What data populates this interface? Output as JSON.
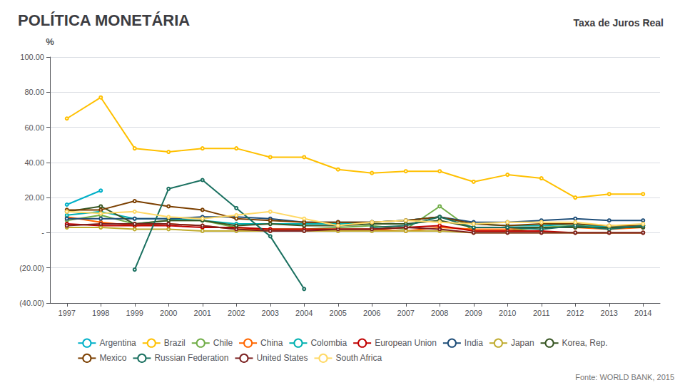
{
  "chart_data": {
    "type": "line",
    "title": "POLÍTICA MONETÁRIA",
    "subtitle": "Taxa de Juros Real",
    "ylabel": "%",
    "annotations": [
      "Fonte: WORLD BANK, 2015"
    ],
    "x": [
      1997,
      1998,
      1999,
      2000,
      2001,
      2002,
      2003,
      2004,
      2005,
      2006,
      2007,
      2008,
      2009,
      2010,
      2011,
      2012,
      2013,
      2014
    ],
    "series": [
      {
        "name": "Argentina",
        "color": "#00B0C8",
        "values": [
          16,
          24,
          null,
          null,
          null,
          null,
          null,
          null,
          null,
          null,
          null,
          null,
          null,
          null,
          null,
          null,
          null,
          null
        ]
      },
      {
        "name": "Brazil",
        "color": "#FFC000",
        "values": [
          65,
          77,
          48,
          46,
          48,
          48,
          43,
          43,
          36,
          34,
          35,
          35,
          29,
          33,
          31,
          20,
          22,
          22
        ]
      },
      {
        "name": "Chile",
        "color": "#70AD47",
        "values": [
          7,
          10,
          5,
          7,
          7,
          3,
          2,
          2,
          3,
          4,
          2,
          15,
          1,
          1,
          3,
          4,
          3,
          4
        ]
      },
      {
        "name": "China",
        "color": "#FF6600",
        "values": [
          9,
          6,
          4,
          5,
          4,
          2,
          2,
          2,
          2,
          2,
          1,
          3,
          2,
          2,
          3,
          3,
          2,
          3
        ]
      },
      {
        "name": "Colombia",
        "color": "#00B0B0",
        "values": [
          10,
          12,
          8,
          8,
          7,
          5,
          5,
          5,
          5,
          6,
          7,
          9,
          5,
          4,
          4,
          5,
          3,
          4
        ]
      },
      {
        "name": "European Union",
        "color": "#C00000",
        "values": [
          5,
          4,
          4,
          4,
          3,
          3,
          2,
          2,
          2,
          2,
          3,
          4,
          1,
          1,
          1,
          0,
          0,
          0
        ]
      },
      {
        "name": "India",
        "color": "#1F4E79",
        "values": [
          8,
          8,
          8,
          8,
          9,
          9,
          8,
          6,
          6,
          6,
          7,
          9,
          6,
          6,
          7,
          8,
          7,
          7
        ]
      },
      {
        "name": "Japan",
        "color": "#BFAB2E",
        "values": [
          3,
          3,
          2,
          2,
          1,
          1,
          1,
          1,
          1,
          1,
          1,
          1,
          0,
          0,
          0,
          0,
          0,
          0
        ]
      },
      {
        "name": "Korea, Rep.",
        "color": "#375623",
        "values": [
          12,
          15,
          5,
          7,
          7,
          4,
          5,
          4,
          4,
          5,
          5,
          7,
          3,
          3,
          3,
          3,
          3,
          3
        ]
      },
      {
        "name": "Mexico",
        "color": "#7B3F00",
        "values": [
          13,
          13,
          18,
          15,
          13,
          8,
          7,
          6,
          6,
          6,
          7,
          9,
          5,
          4,
          5,
          5,
          4,
          4
        ]
      },
      {
        "name": "Russian Federation",
        "color": "#1A7060",
        "values": [
          null,
          null,
          -21,
          25,
          30,
          14,
          -2,
          -32,
          null,
          3,
          4,
          9,
          3,
          3,
          2,
          4,
          2,
          4
        ]
      },
      {
        "name": "United States",
        "color": "#7B2020",
        "values": [
          4,
          5,
          5,
          5,
          4,
          2,
          1,
          1,
          2,
          2,
          3,
          2,
          0,
          0,
          0,
          0,
          0,
          0
        ]
      },
      {
        "name": "South Africa",
        "color": "#FFD966",
        "values": [
          12,
          11,
          12,
          9,
          8,
          10,
          12,
          8,
          4,
          6,
          7,
          6,
          5,
          6,
          6,
          6,
          4,
          5
        ]
      }
    ],
    "xlim": [
      1996.5,
      2014.5
    ],
    "xticks": [
      1997,
      1998,
      1999,
      2000,
      2001,
      2002,
      2003,
      2004,
      2005,
      2006,
      2007,
      2008,
      2009,
      2010,
      2011,
      2012,
      2013,
      2014
    ],
    "ylim": [
      -40,
      100
    ],
    "yticks": [
      {
        "value": -40,
        "label": "(40.00)"
      },
      {
        "value": -20,
        "label": "(20.00)"
      },
      {
        "value": 0,
        "label": "-"
      },
      {
        "value": 20,
        "label": "20.00"
      },
      {
        "value": 40,
        "label": "40.00"
      },
      {
        "value": 60,
        "label": "60.00"
      },
      {
        "value": 80,
        "label": "80.00"
      },
      {
        "value": 100,
        "label": "100.00"
      }
    ],
    "grid": true,
    "legend": "bottom"
  }
}
